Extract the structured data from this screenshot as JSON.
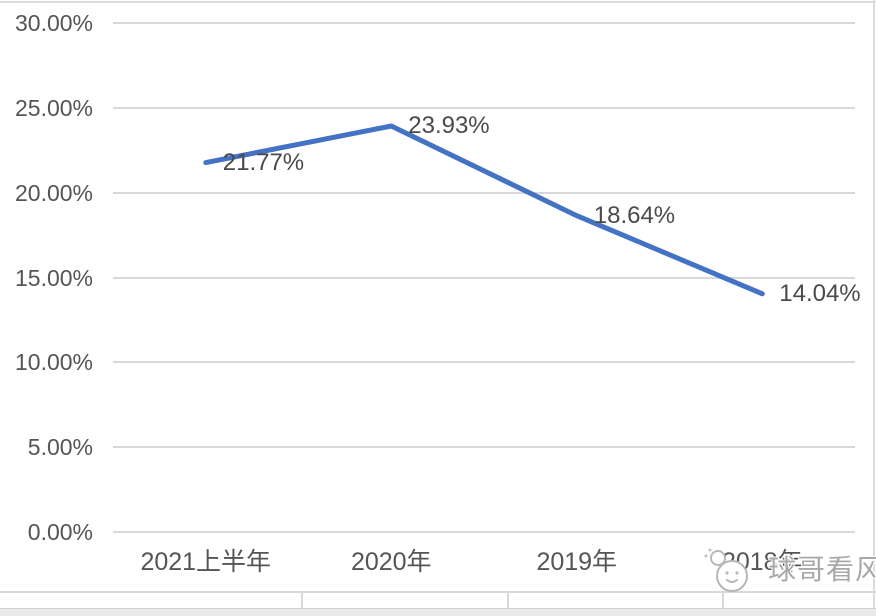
{
  "chart_data": {
    "type": "line",
    "title": "",
    "categories": [
      "2021上半年",
      "2020年",
      "2019年",
      "2018年"
    ],
    "values": [
      21.77,
      23.93,
      18.64,
      14.04
    ],
    "data_labels": [
      "21.77%",
      "23.93%",
      "18.64%",
      "14.04%"
    ],
    "y_ticks": [
      "30.00%",
      "25.00%",
      "20.00%",
      "15.00%",
      "10.00%",
      "5.00%",
      "0.00%"
    ],
    "ylim": [
      0,
      30
    ],
    "xlabel": "",
    "ylabel": "",
    "grid": true,
    "legend": "none",
    "line_color": "#4472C4",
    "gridline_color": "#d9d9d9",
    "text_color": "#555555"
  },
  "watermark": {
    "text": "球哥看风",
    "icon": "cartoon-face-icon"
  }
}
